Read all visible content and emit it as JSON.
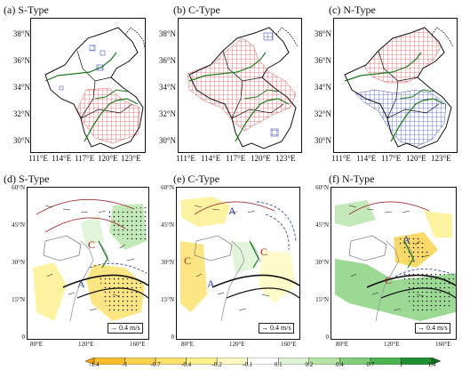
{
  "panels": {
    "a": {
      "title": "(a) S-Type"
    },
    "b": {
      "title": "(b) C-Type"
    },
    "c": {
      "title": "(c) N-Type"
    },
    "d": {
      "title": "(d) S-Type",
      "labels": [
        "C",
        "A"
      ]
    },
    "e": {
      "title": "(e) C-Type",
      "labels": [
        "A",
        "C",
        "C",
        "A"
      ]
    },
    "f": {
      "title": "(f) N-Type",
      "labels": [
        "A",
        "C"
      ]
    }
  },
  "top_axes": {
    "lat_ticks": [
      "38°N",
      "36°N",
      "34°N",
      "32°N",
      "30°N"
    ],
    "lon_ticks": [
      "111°E",
      "114°E",
      "117°E",
      "120°E",
      "123°E"
    ]
  },
  "bottom_axes": {
    "lat_ticks": [
      "60°N",
      "45°N",
      "30°N",
      "15°N",
      "0"
    ],
    "lon_ticks": [
      "80°E",
      "120°E",
      "160°E"
    ]
  },
  "scale_label": "0.4 m/s",
  "colorbar": {
    "labels": [
      "-1.4",
      "-1",
      "-0.7",
      "-0.4",
      "-0.2",
      "-0.1",
      "0.1",
      "0.2",
      "0.4",
      "0.7",
      "1",
      "1.4"
    ],
    "colors": [
      "#f5a300",
      "#f7bd2a",
      "#f9d24f",
      "#fbe26d",
      "#fdf08f",
      "#fef9c4",
      "#ffffff",
      "#dff3d6",
      "#b5e4a6",
      "#82cf79",
      "#4cb34f",
      "#1f8f32",
      "#0e6e1f"
    ]
  },
  "colors": {
    "positive_hatch": "#e05a5a",
    "negative_hatch": "#4a56c8",
    "river": "#1e7a1e",
    "stream_line": "#222222",
    "contour_warm": "#a03030",
    "contour_cool": "#3a4fa0"
  }
}
